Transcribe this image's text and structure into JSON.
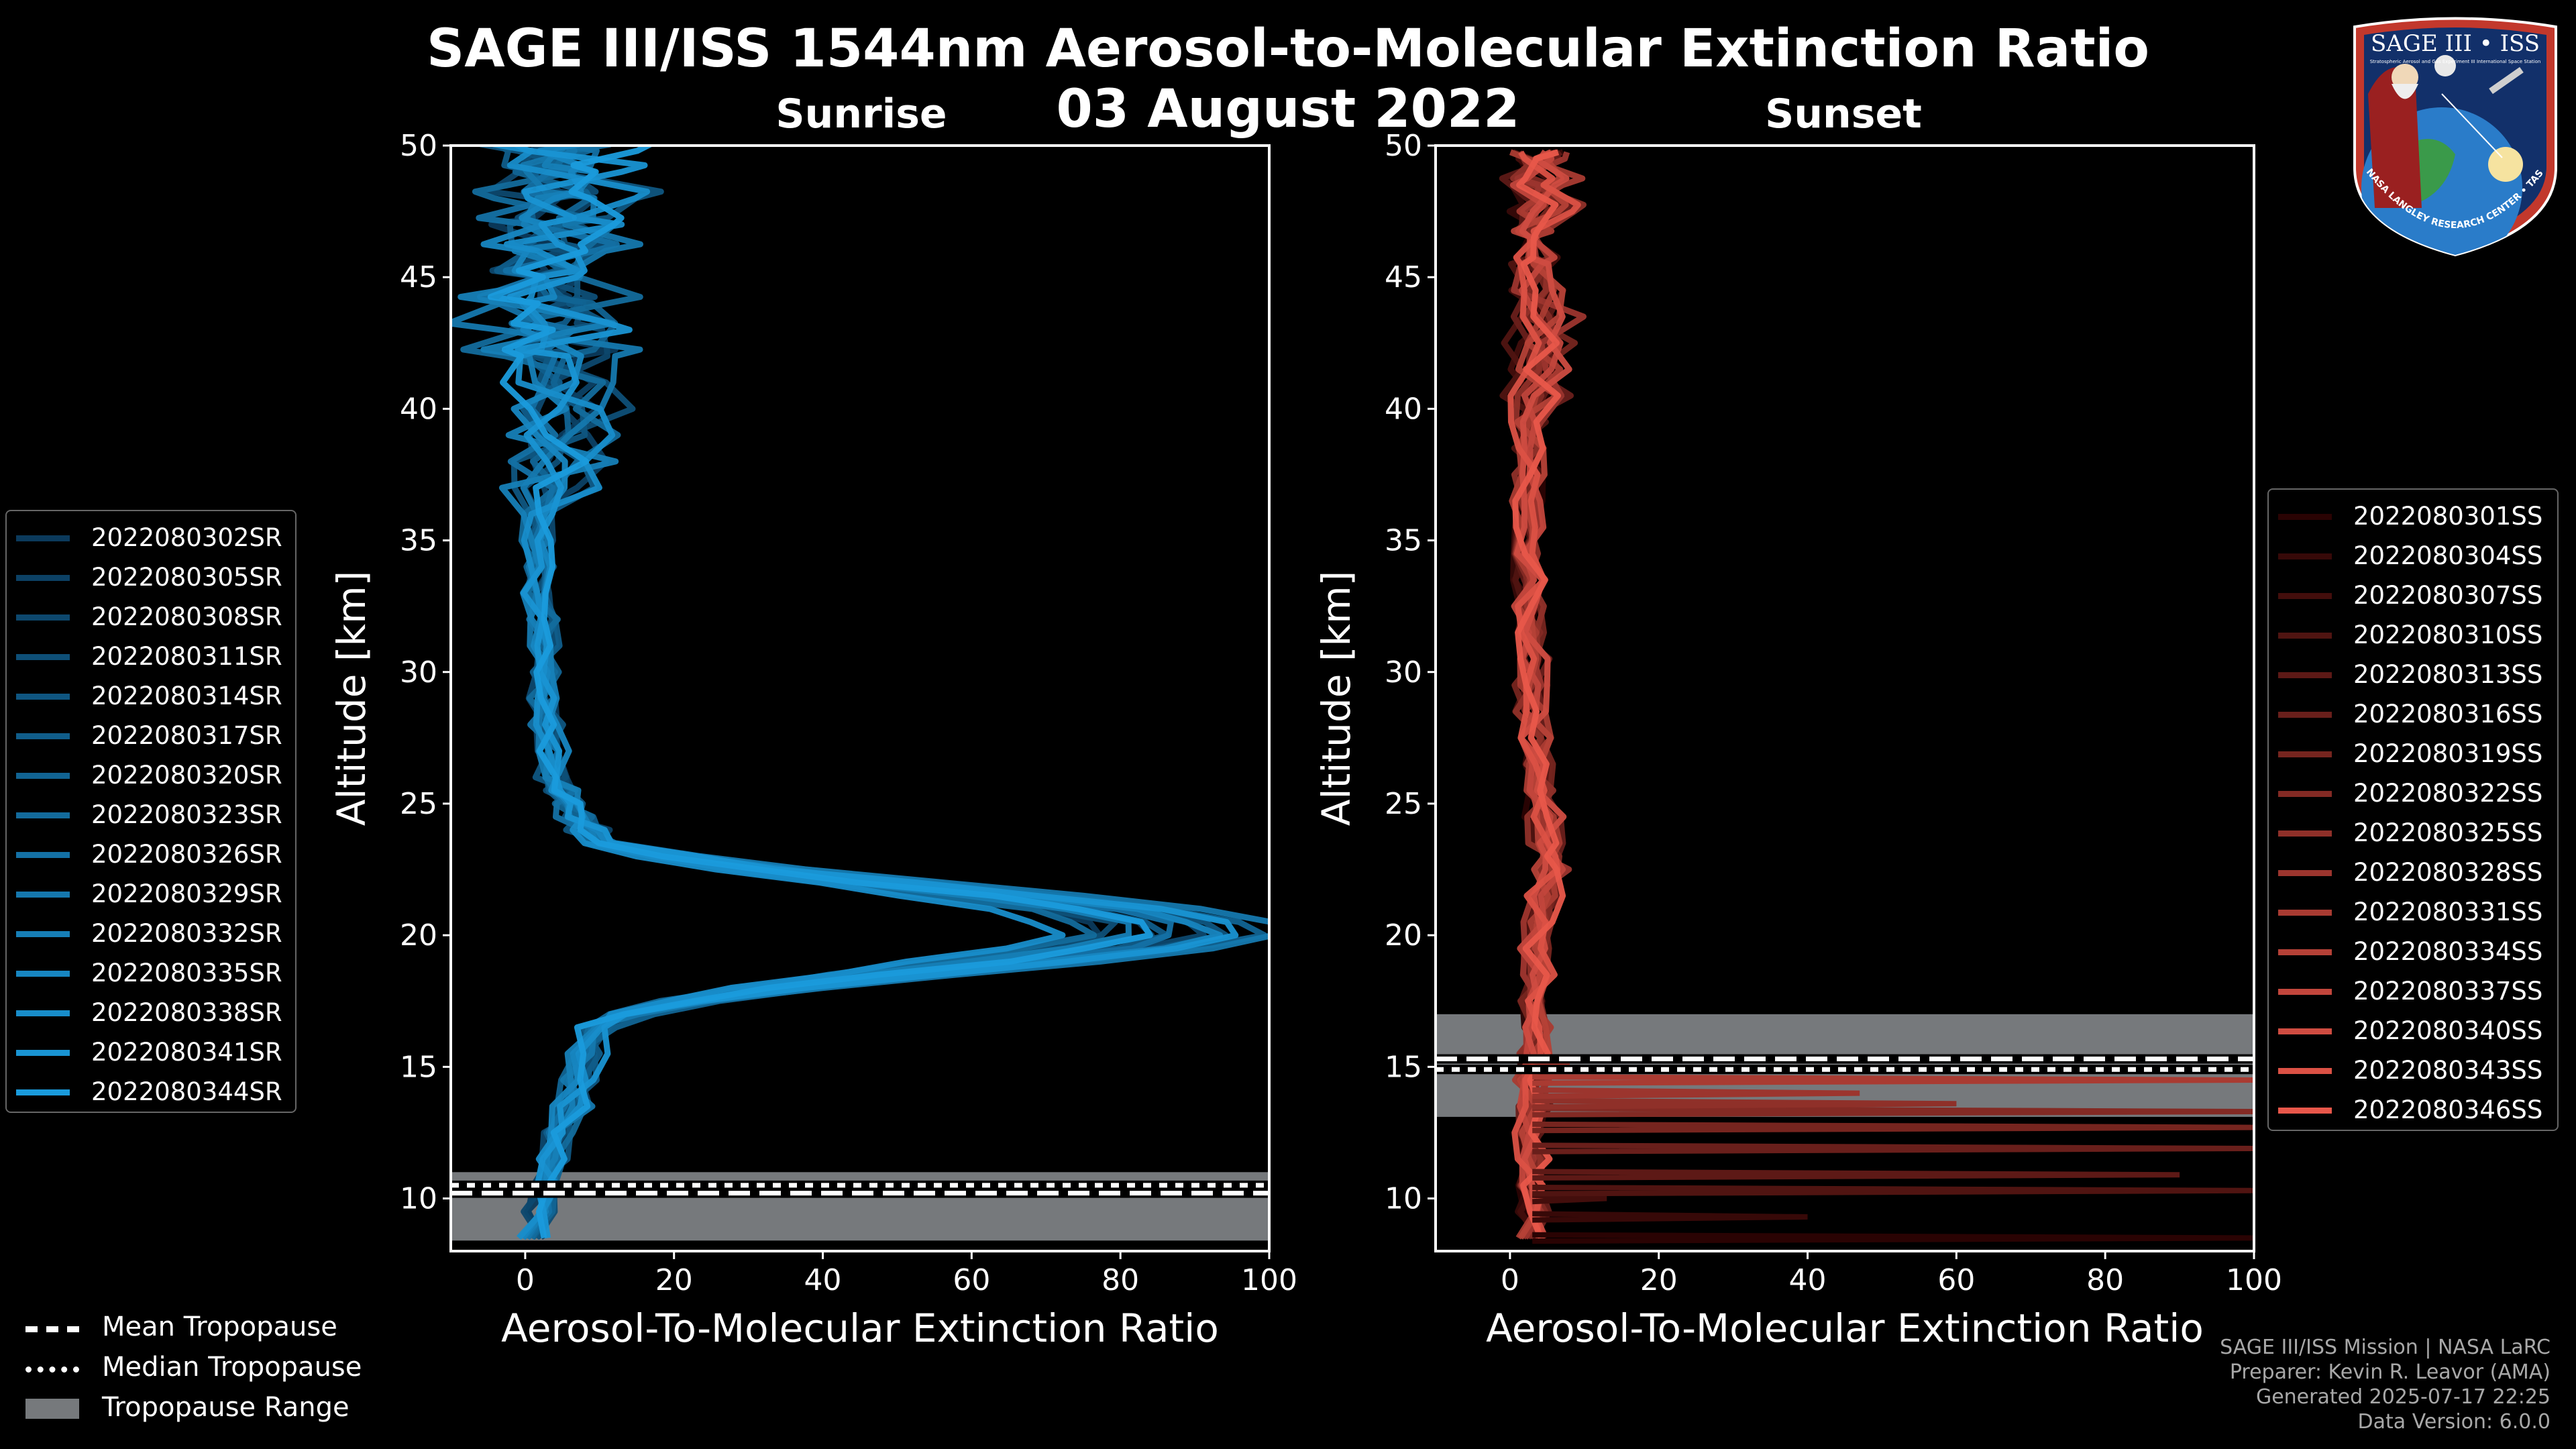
{
  "header": {
    "title_line1": "SAGE III/ISS 1544nm Aerosol-to-Molecular Extinction Ratio",
    "title_line2": "03 August 2022"
  },
  "logo": {
    "top_text": "SAGE III • ISS",
    "sub_text": "Stratospheric Aerosol and Gas Experiment III  International Space Station",
    "ring_text": "BALL • NASA LANGLEY RESEARCH CENTER • TAS-I • ESA"
  },
  "footer": {
    "line1": "SAGE III/ISS Mission | NASA LaRC",
    "line2": "Preparer: Kevin R. Leavor (AMA)",
    "line3": "Generated 2025-07-17 22:25",
    "line4": "Data Version: 6.0.0"
  },
  "tropopause_legend": [
    {
      "label": "Mean Tropopause",
      "style": "dashed"
    },
    {
      "label": "Median Tropopause",
      "style": "dotted"
    },
    {
      "label": "Tropopause Range",
      "style": "patch"
    }
  ],
  "chart_data": [
    {
      "type": "line",
      "title": "Sunrise",
      "xlabel": "Aerosol-To-Molecular Extinction Ratio",
      "ylabel": "Altitude [km]",
      "xlim": [
        -10,
        100
      ],
      "ylim": [
        8,
        50
      ],
      "xticks": [
        0,
        20,
        40,
        60,
        80,
        100
      ],
      "yticks": [
        10,
        15,
        20,
        25,
        30,
        35,
        40,
        45,
        50
      ],
      "tropopause": {
        "mean": 10.2,
        "median": 10.5,
        "range": [
          8.4,
          11.0
        ]
      },
      "color_dark": "#0b3a5c",
      "color_light": "#1a9bdc",
      "range_color": "#76797c",
      "profile_shape": {
        "altitudes": [
          8.5,
          9.5,
          10.5,
          11.5,
          12.5,
          13.5,
          14.5,
          15.5,
          16.5,
          17.0,
          17.5,
          18.0,
          18.5,
          19.0,
          19.5,
          20.0,
          20.5,
          21.0,
          21.5,
          22.0,
          22.5,
          23.0,
          23.5,
          24.0,
          24.5,
          25.0,
          25.5,
          26.0,
          27.0,
          28.0,
          29.0,
          30.0,
          31.0,
          32.0,
          33.0,
          34.0,
          35.0,
          36.0,
          37.0,
          38.0,
          39.0,
          40.0,
          41.0,
          42.0,
          43.0,
          44.0,
          45.0,
          46.0,
          47.0,
          48.0,
          49.0,
          49.8
        ],
        "values": [
          1,
          2,
          3,
          4,
          5,
          6,
          7,
          8,
          10,
          14,
          22,
          34,
          50,
          66,
          80,
          88,
          86,
          78,
          64,
          48,
          32,
          20,
          12,
          9,
          7,
          6,
          5,
          4,
          3.5,
          3,
          2.5,
          2.5,
          2.5,
          2.5,
          2,
          2,
          1.5,
          1.5,
          1.5,
          1.5,
          1.5,
          1.5,
          1.5,
          1.5,
          1.5,
          1.5,
          1.5,
          1.5,
          1.5,
          1.5,
          1.5,
          1.5
        ],
        "noise_above_km": 36,
        "noise_amplitude": 14
      },
      "series": [
        {
          "name": "2022080302SR",
          "peak_scale": 0.88
        },
        {
          "name": "2022080305SR",
          "peak_scale": 0.95
        },
        {
          "name": "2022080308SR",
          "peak_scale": 1.02
        },
        {
          "name": "2022080311SR",
          "peak_scale": 0.9
        },
        {
          "name": "2022080314SR",
          "peak_scale": 1.08
        },
        {
          "name": "2022080317SR",
          "peak_scale": 0.98
        },
        {
          "name": "2022080320SR",
          "peak_scale": 1.12
        },
        {
          "name": "2022080323SR",
          "peak_scale": 0.85
        },
        {
          "name": "2022080326SR",
          "peak_scale": 1.0
        },
        {
          "name": "2022080329SR",
          "peak_scale": 1.15
        },
        {
          "name": "2022080332SR",
          "peak_scale": 0.92
        },
        {
          "name": "2022080335SR",
          "peak_scale": 1.05
        },
        {
          "name": "2022080338SR",
          "peak_scale": 0.8
        },
        {
          "name": "2022080341SR",
          "peak_scale": 1.1
        },
        {
          "name": "2022080344SR",
          "peak_scale": 0.96
        }
      ]
    },
    {
      "type": "line",
      "title": "Sunset",
      "xlabel": "Aerosol-To-Molecular Extinction Ratio",
      "ylabel": "Altitude [km]",
      "xlim": [
        -10,
        100
      ],
      "ylim": [
        8,
        50
      ],
      "xticks": [
        0,
        20,
        40,
        60,
        80,
        100
      ],
      "yticks": [
        10,
        15,
        20,
        25,
        30,
        35,
        40,
        45,
        50
      ],
      "tropopause": {
        "mean": 15.3,
        "median": 14.9,
        "range": [
          13.1,
          17.0
        ]
      },
      "color_dark": "#2a0303",
      "color_light": "#e8574a",
      "range_color": "#76797c",
      "profile_shape": {
        "altitudes": [
          8.5,
          9.5,
          10.5,
          11.5,
          12.5,
          13.5,
          14.5,
          15.5,
          16.5,
          17.5,
          18.5,
          19.5,
          20.5,
          21.5,
          22.5,
          23.0,
          23.5,
          24.5,
          25.5,
          26.5,
          27.5,
          28.5,
          29.5,
          30.5,
          31.5,
          32.5,
          33.5,
          34.5,
          35.5,
          36.5,
          37.5,
          38.5,
          39.5,
          40.5,
          41.5,
          42.5,
          43.5,
          44.5,
          45.5,
          46.5,
          47.5,
          48.5,
          49.5
        ],
        "values": [
          3,
          3,
          3,
          3,
          3,
          3,
          3,
          3,
          3.5,
          3.5,
          3.5,
          3.5,
          4,
          4.5,
          5.5,
          6,
          5,
          4.5,
          4,
          3.5,
          3.5,
          3,
          3,
          3,
          2.5,
          2.5,
          2.5,
          2.5,
          2.5,
          2.5,
          2.5,
          2.5,
          2.5,
          2.5,
          2.5,
          2.5,
          2.5,
          2.5,
          2.5,
          2.5,
          2.5,
          2.5,
          2.5
        ],
        "noise_above_km": 40,
        "noise_amplitude": 6
      },
      "spikes": [
        {
          "altitude": 8.5,
          "value": 100
        },
        {
          "altitude": 9.3,
          "value": 40
        },
        {
          "altitude": 10.0,
          "value": 13
        },
        {
          "altitude": 10.3,
          "value": 100
        },
        {
          "altitude": 10.9,
          "value": 90
        },
        {
          "altitude": 11.9,
          "value": 100
        },
        {
          "altitude": 12.7,
          "value": 100
        },
        {
          "altitude": 13.3,
          "value": 100
        },
        {
          "altitude": 13.6,
          "value": 60
        },
        {
          "altitude": 14.0,
          "value": 47
        },
        {
          "altitude": 14.5,
          "value": 100
        },
        {
          "altitude": 15.1,
          "value": 8
        }
      ],
      "series": [
        {
          "name": "2022080301SS",
          "peak_scale": 1.0
        },
        {
          "name": "2022080304SS",
          "peak_scale": 1.1
        },
        {
          "name": "2022080307SS",
          "peak_scale": 0.9
        },
        {
          "name": "2022080310SS",
          "peak_scale": 1.05
        },
        {
          "name": "2022080313SS",
          "peak_scale": 0.95
        },
        {
          "name": "2022080316SS",
          "peak_scale": 1.2
        },
        {
          "name": "2022080319SS",
          "peak_scale": 0.85
        },
        {
          "name": "2022080322SS",
          "peak_scale": 1.0
        },
        {
          "name": "2022080325SS",
          "peak_scale": 1.15
        },
        {
          "name": "2022080328SS",
          "peak_scale": 0.92
        },
        {
          "name": "2022080331SS",
          "peak_scale": 1.08
        },
        {
          "name": "2022080334SS",
          "peak_scale": 0.98
        },
        {
          "name": "2022080337SS",
          "peak_scale": 1.12
        },
        {
          "name": "2022080340SS",
          "peak_scale": 0.88
        },
        {
          "name": "2022080343SS",
          "peak_scale": 1.02
        },
        {
          "name": "2022080346SS",
          "peak_scale": 1.0
        }
      ]
    }
  ]
}
